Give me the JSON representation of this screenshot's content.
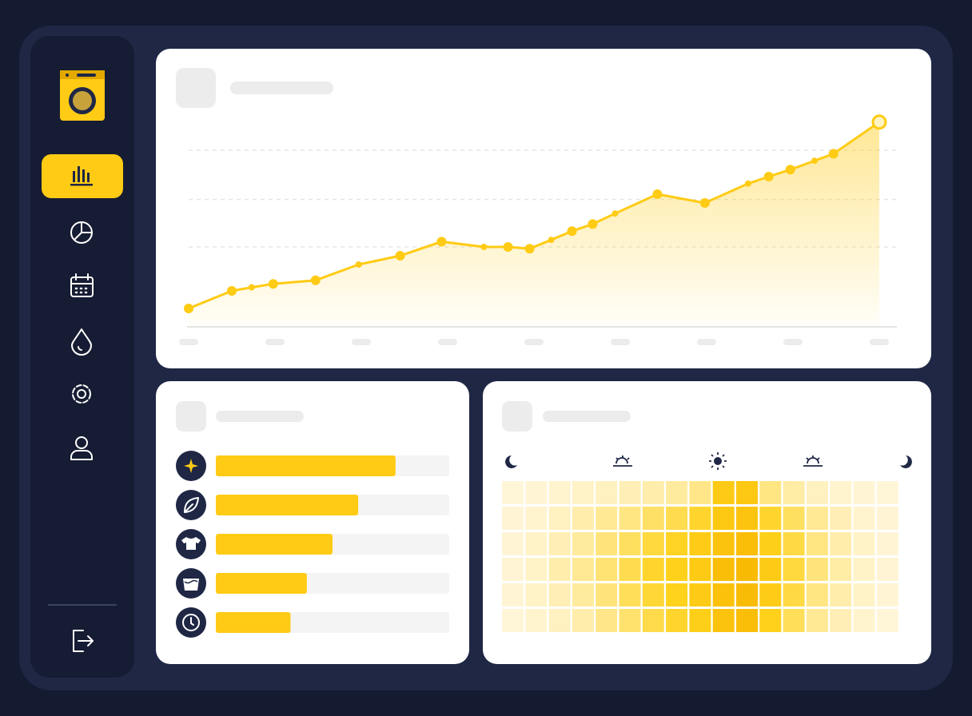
{
  "chart_data": [
    {
      "type": "line",
      "x": [
        0,
        0.5,
        0.73,
        0.98,
        1.47,
        1.97,
        2.45,
        2.93,
        3.42,
        3.7,
        3.95,
        4.2,
        4.44,
        4.68,
        4.94,
        5.43,
        5.98,
        6.48,
        6.72,
        6.97,
        7.25,
        7.47,
        8
      ],
      "values": [
        10,
        20,
        22,
        24,
        26,
        35,
        40,
        48,
        45,
        45,
        44,
        49,
        54,
        58,
        64,
        75,
        70,
        81,
        85,
        89,
        94,
        98,
        116
      ],
      "color": "#ffcb14",
      "xlim": [
        0,
        8
      ],
      "ylim": [
        0,
        120
      ],
      "xticks": [
        0,
        1,
        2,
        3,
        4,
        5,
        6,
        7,
        8
      ],
      "yticks": [
        45,
        72,
        100
      ],
      "grid": true
    },
    {
      "type": "bar",
      "orientation": "horizontal",
      "values": [
        77,
        61,
        50,
        39,
        32
      ],
      "color": "#ffcb14",
      "xlim": [
        0,
        100
      ]
    },
    {
      "type": "heatmap",
      "values": [
        [
          5,
          6,
          8,
          10,
          12,
          15,
          18,
          22,
          28,
          70,
          75,
          30,
          20,
          12,
          8,
          6,
          5
        ],
        [
          6,
          8,
          12,
          18,
          25,
          30,
          38,
          45,
          55,
          75,
          80,
          55,
          40,
          25,
          15,
          8,
          6
        ],
        [
          6,
          10,
          15,
          22,
          32,
          40,
          50,
          58,
          68,
          82,
          88,
          65,
          48,
          30,
          18,
          10,
          6
        ],
        [
          6,
          10,
          18,
          25,
          35,
          45,
          55,
          62,
          72,
          88,
          95,
          70,
          50,
          32,
          20,
          10,
          6
        ],
        [
          6,
          10,
          15,
          22,
          32,
          42,
          52,
          60,
          70,
          85,
          92,
          68,
          48,
          30,
          18,
          10,
          6
        ],
        [
          5,
          8,
          12,
          18,
          28,
          36,
          46,
          55,
          65,
          82,
          88,
          62,
          42,
          25,
          15,
          8,
          5
        ]
      ],
      "colors": [
        "#fff9e9",
        "#ffd21c",
        "#f8b600"
      ],
      "zlim": [
        0,
        100
      ]
    }
  ]
}
